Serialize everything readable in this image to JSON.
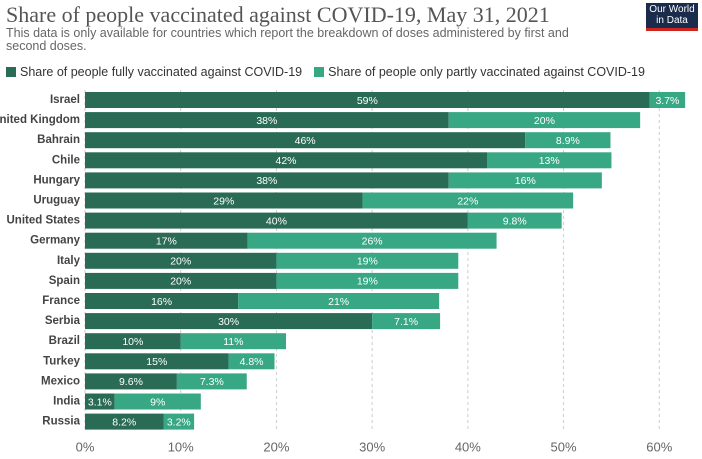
{
  "chart_data": {
    "type": "stacked-barh",
    "title": "Share of people vaccinated against COVID-19, May 31, 2021",
    "subtitle": "This data is only available for countries which report the breakdown of doses administered by first and second doses.",
    "logo": "Our World in Data",
    "categories": [
      "Israel",
      "United Kingdom",
      "Bahrain",
      "Chile",
      "Hungary",
      "Uruguay",
      "United States",
      "Germany",
      "Italy",
      "Spain",
      "France",
      "Serbia",
      "Brazil",
      "Turkey",
      "Mexico",
      "India",
      "Russia"
    ],
    "series": [
      {
        "name": "Share of people fully vaccinated against COVID-19",
        "color": "#2a6b55",
        "values": [
          59,
          38,
          46,
          42,
          38,
          29,
          40,
          17,
          20,
          20,
          16,
          30,
          10,
          15,
          9.6,
          3.1,
          8.2
        ],
        "value_labels": [
          "59%",
          "38%",
          "46%",
          "42%",
          "38%",
          "29%",
          "40%",
          "17%",
          "20%",
          "20%",
          "16%",
          "30%",
          "10%",
          "15%",
          "9.6%",
          "3.1%",
          "8.2%"
        ]
      },
      {
        "name": "Share of people only partly vaccinated against COVID-19",
        "color": "#38a783",
        "values": [
          3.7,
          20,
          8.9,
          13,
          16,
          22,
          9.8,
          26,
          19,
          19,
          21,
          7.1,
          11,
          4.8,
          7.3,
          9,
          3.2
        ],
        "value_labels": [
          "3.7%",
          "20%",
          "8.9%",
          "13%",
          "16%",
          "22%",
          "9.8%",
          "26%",
          "19%",
          "19%",
          "21%",
          "7.1%",
          "11%",
          "4.8%",
          "7.3%",
          "9%",
          "3.2%"
        ]
      }
    ],
    "xlim": [
      0,
      63
    ],
    "xticks": [
      {
        "value": 0,
        "label": "0%"
      },
      {
        "value": 10,
        "label": "10%"
      },
      {
        "value": 20,
        "label": "20%"
      },
      {
        "value": 30,
        "label": "30%"
      },
      {
        "value": 40,
        "label": "40%"
      },
      {
        "value": 50,
        "label": "50%"
      },
      {
        "value": 60,
        "label": "60%"
      }
    ],
    "grid": true
  }
}
